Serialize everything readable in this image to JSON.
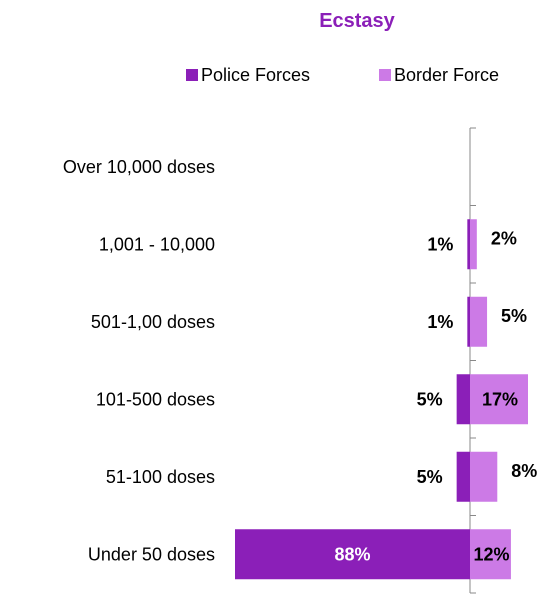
{
  "chart_data": {
    "type": "bar",
    "orientation": "horizontal-diverging",
    "title": "Ecstasy",
    "categories": [
      "Over 10,000 doses",
      "1,001 - 10,000",
      "501-1,00 doses",
      "101-500 doses",
      "51-100 doses",
      "Under 50 doses"
    ],
    "series": [
      {
        "name": "Police Forces",
        "values": [
          0,
          1,
          1,
          5,
          5,
          88
        ],
        "labels": [
          "",
          "1%",
          "1%",
          "5%",
          "5%",
          "88%"
        ],
        "color": "#8B1FB8",
        "direction": "left"
      },
      {
        "name": "Border Force",
        "values": [
          0,
          2,
          5,
          17,
          8,
          12
        ],
        "labels": [
          "",
          "2%",
          "5%",
          "17%",
          "8%",
          "12%"
        ],
        "color": "#CC7AE6",
        "direction": "right"
      }
    ],
    "legend": "top",
    "grid": false,
    "colors": {
      "title": "#8B1FB8",
      "axis": "#888888"
    }
  }
}
